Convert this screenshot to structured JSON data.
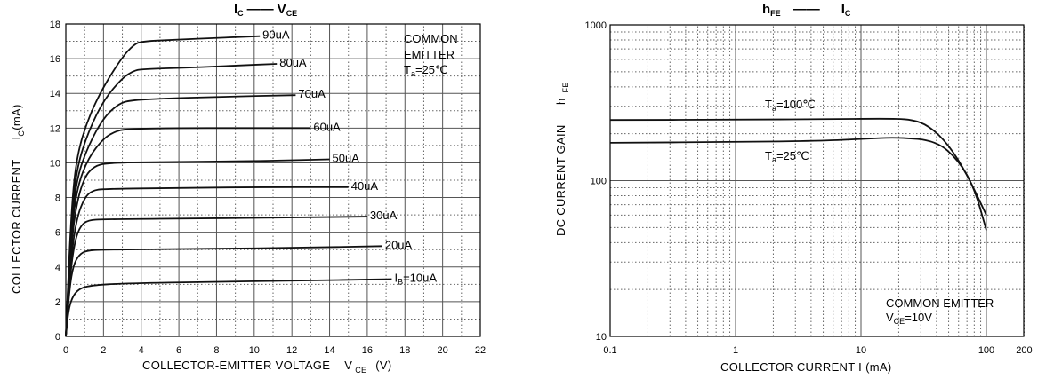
{
  "chart_data": [
    {
      "type": "line",
      "title": {
        "main": "I",
        "sub": "C",
        "dash": "——",
        "main2": "V",
        "sub2": "CE"
      },
      "xlabel": {
        "text": "COLLECTOR-EMITTER VOLTAGE",
        "sym": "V",
        "sub": "CE",
        "unit": "(V)"
      },
      "ylabel": {
        "text": "COLLECTOR CURRENT",
        "sym": "I",
        "sub": "C",
        "unit": "(mA)"
      },
      "xlim": [
        0,
        22
      ],
      "ylim": [
        0,
        18
      ],
      "xticks": [
        "0",
        "2",
        "4",
        "6",
        "8",
        "10",
        "12",
        "14",
        "16",
        "18",
        "20",
        "22"
      ],
      "yticks": [
        "0",
        "2",
        "4",
        "6",
        "8",
        "10",
        "12",
        "14",
        "16",
        "18"
      ],
      "grid": true,
      "annotation": {
        "lines": [
          "COMMON",
          "EMITTER"
        ],
        "temp_sym": "T",
        "temp_sub": "a",
        "temp_val": "=25℃"
      },
      "series": [
        {
          "name": "90uA",
          "sat": 17.3,
          "knee": 3.9,
          "xend": 10.3,
          "points": [
            [
              0,
              0
            ],
            [
              0.3,
              7.5
            ],
            [
              0.6,
              10.5
            ],
            [
              1.2,
              12.6
            ],
            [
              2,
              14.4
            ],
            [
              3,
              16.1
            ],
            [
              3.6,
              16.8
            ],
            [
              4,
              17.0
            ],
            [
              6,
              17.1
            ],
            [
              8,
              17.2
            ],
            [
              10.3,
              17.3
            ]
          ]
        },
        {
          "name": "80uA",
          "sat": 15.7,
          "knee": 3.8,
          "xend": 11.2,
          "points": [
            [
              0,
              0
            ],
            [
              0.3,
              7
            ],
            [
              0.6,
              9.8
            ],
            [
              1.2,
              11.8
            ],
            [
              2,
              13.6
            ],
            [
              3,
              14.9
            ],
            [
              3.6,
              15.3
            ],
            [
              4,
              15.4
            ],
            [
              7,
              15.5
            ],
            [
              9,
              15.6
            ],
            [
              11.2,
              15.7
            ]
          ]
        },
        {
          "name": "70uA",
          "sat": 13.9,
          "knee": 3.3,
          "xend": 12.2,
          "points": [
            [
              0,
              0
            ],
            [
              0.3,
              6.5
            ],
            [
              0.6,
              9.2
            ],
            [
              1.2,
              11.0
            ],
            [
              2,
              12.6
            ],
            [
              2.8,
              13.4
            ],
            [
              3.4,
              13.6
            ],
            [
              5,
              13.7
            ],
            [
              8,
              13.8
            ],
            [
              12.2,
              13.9
            ]
          ]
        },
        {
          "name": "60uA",
          "sat": 12.0,
          "knee": 3.0,
          "xend": 13.0,
          "points": [
            [
              0,
              0
            ],
            [
              0.3,
              6
            ],
            [
              0.6,
              8.6
            ],
            [
              1.2,
              10.3
            ],
            [
              2,
              11.4
            ],
            [
              2.6,
              11.8
            ],
            [
              3.2,
              11.95
            ],
            [
              6,
              12.0
            ],
            [
              9,
              12.0
            ],
            [
              13,
              12.0
            ]
          ]
        },
        {
          "name": "50uA",
          "sat": 10.2,
          "knee": 2.2,
          "xend": 14.0,
          "points": [
            [
              0,
              0
            ],
            [
              0.3,
              5.5
            ],
            [
              0.6,
              7.8
            ],
            [
              1.0,
              9.2
            ],
            [
              1.5,
              9.8
            ],
            [
              2.2,
              10.0
            ],
            [
              5,
              10.05
            ],
            [
              10,
              10.1
            ],
            [
              14,
              10.2
            ]
          ]
        },
        {
          "name": "40uA",
          "sat": 8.6,
          "knee": 1.8,
          "xend": 15.0,
          "points": [
            [
              0,
              0
            ],
            [
              0.3,
              4.8
            ],
            [
              0.6,
              6.9
            ],
            [
              1.0,
              8.0
            ],
            [
              1.4,
              8.4
            ],
            [
              2,
              8.5
            ],
            [
              6,
              8.55
            ],
            [
              10,
              8.6
            ],
            [
              15,
              8.6
            ]
          ]
        },
        {
          "name": "30uA",
          "sat": 6.9,
          "knee": 1.3,
          "xend": 16.0,
          "points": [
            [
              0,
              0
            ],
            [
              0.25,
              3.8
            ],
            [
              0.5,
              5.6
            ],
            [
              0.8,
              6.4
            ],
            [
              1.2,
              6.7
            ],
            [
              2,
              6.75
            ],
            [
              8,
              6.8
            ],
            [
              12,
              6.85
            ],
            [
              16,
              6.9
            ]
          ]
        },
        {
          "name": "20uA",
          "sat": 5.2,
          "knee": 1.0,
          "xend": 16.8,
          "points": [
            [
              0,
              0
            ],
            [
              0.2,
              2.8
            ],
            [
              0.4,
              4.1
            ],
            [
              0.7,
              4.7
            ],
            [
              1.1,
              4.95
            ],
            [
              2,
              5.0
            ],
            [
              8,
              5.05
            ],
            [
              12,
              5.1
            ],
            [
              16.8,
              5.2
            ]
          ]
        },
        {
          "name": "10uA",
          "label_sym": "I",
          "label_sub": "B",
          "label_val": "=10uA",
          "sat": 3.3,
          "knee": 0.9,
          "xend": 17.3,
          "points": [
            [
              0,
              0
            ],
            [
              0.15,
              1.6
            ],
            [
              0.4,
              2.4
            ],
            [
              0.8,
              2.8
            ],
            [
              1.5,
              2.95
            ],
            [
              3,
              3.05
            ],
            [
              8,
              3.15
            ],
            [
              12,
              3.2
            ],
            [
              17.3,
              3.3
            ]
          ]
        }
      ]
    },
    {
      "type": "line",
      "title": {
        "main": "h",
        "sub": "FE",
        "dash": "——",
        "main2": "I",
        "sub2": "C"
      },
      "xlabel": {
        "text": "COLLECTOR CURRENT I",
        "unit": "(mA)"
      },
      "ylabel": {
        "text": "DC CURRENT GAIN",
        "sym": "h",
        "sub": "FE"
      },
      "xscale": "log",
      "yscale": "log",
      "xlim": [
        0.1,
        200
      ],
      "ylim": [
        10,
        1000
      ],
      "xticks": [
        "0.1",
        "1",
        "10",
        "100",
        "200"
      ],
      "yticks": [
        "10",
        "100",
        "1000"
      ],
      "grid": true,
      "annotation": {
        "lines": [
          "COMMON EMITTER"
        ],
        "v_sym": "V",
        "v_sub": "CE",
        "v_val": "=10V"
      },
      "series": [
        {
          "name": "Ta=100℃",
          "label_sym": "T",
          "label_sub": "a",
          "label_val": "=100℃",
          "points": [
            [
              0.1,
              245
            ],
            [
              1,
              246
            ],
            [
              5,
              248
            ],
            [
              15,
              250
            ],
            [
              25,
              248
            ],
            [
              35,
              225
            ],
            [
              50,
              170
            ],
            [
              70,
              110
            ],
            [
              100,
              60
            ]
          ]
        },
        {
          "name": "Ta=25℃",
          "label_sym": "T",
          "label_sub": "a",
          "label_val": "=25℃",
          "points": [
            [
              0.1,
              175
            ],
            [
              1,
              177
            ],
            [
              5,
              180
            ],
            [
              10,
              185
            ],
            [
              20,
              190
            ],
            [
              40,
              180
            ],
            [
              60,
              135
            ],
            [
              80,
              90
            ],
            [
              100,
              48
            ]
          ]
        }
      ]
    }
  ]
}
